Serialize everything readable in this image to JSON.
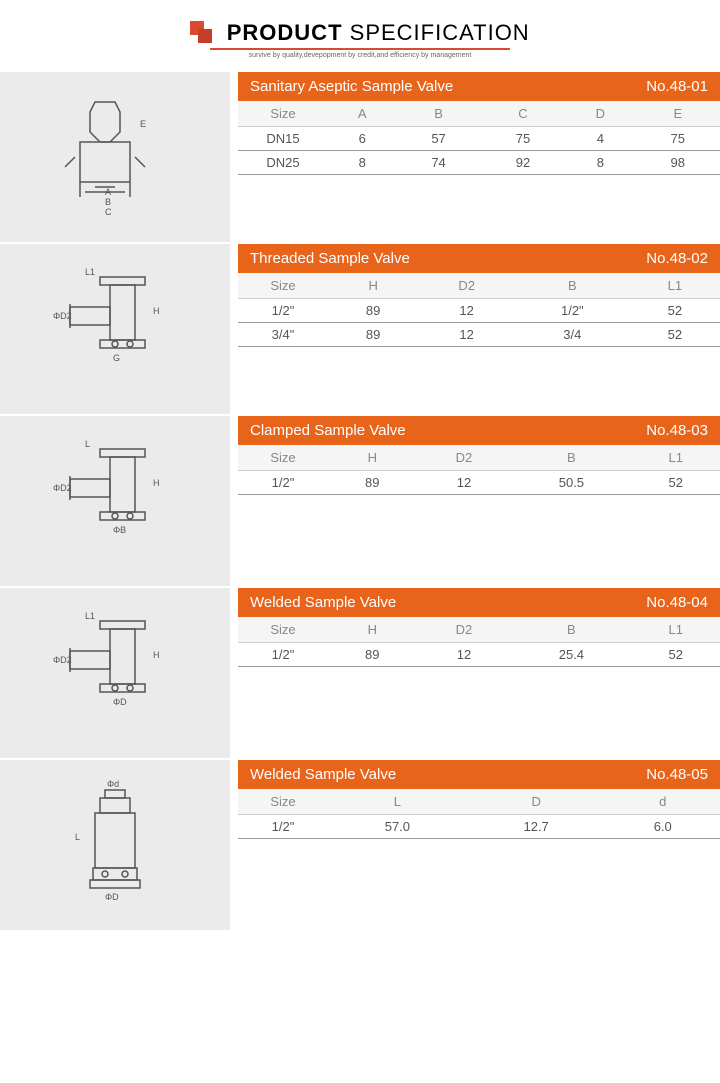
{
  "header": {
    "title_bold": "PRODUCT",
    "title_light": "SPECIFICATION",
    "subtitle": "survive by quality,devepopment by credit,and efficiency by management"
  },
  "sections": [
    {
      "title": "Sanitary Aseptic Sample Valve",
      "number": "No.48-01",
      "columns": [
        "Size",
        "A",
        "B",
        "C",
        "D",
        "E"
      ],
      "rows": [
        [
          "DN15",
          "6",
          "57",
          "75",
          "4",
          "75"
        ],
        [
          "DN25",
          "8",
          "74",
          "92",
          "8",
          "98"
        ]
      ],
      "diagram_labels": [
        "A",
        "B",
        "C",
        "E"
      ]
    },
    {
      "title": "Threaded Sample Valve",
      "number": "No.48-02",
      "columns": [
        "Size",
        "H",
        "D2",
        "B",
        "L1"
      ],
      "rows": [
        [
          "1/2\"",
          "89",
          "12",
          "1/2\"",
          "52"
        ],
        [
          "3/4\"",
          "89",
          "12",
          "3/4",
          "52"
        ]
      ],
      "diagram_labels": [
        "L1",
        "ΦD2",
        "H",
        "G"
      ]
    },
    {
      "title": "Clamped Sample Valve",
      "number": "No.48-03",
      "columns": [
        "Size",
        "H",
        "D2",
        "B",
        "L1"
      ],
      "rows": [
        [
          "1/2\"",
          "89",
          "12",
          "50.5",
          "52"
        ]
      ],
      "diagram_labels": [
        "L",
        "ΦD2",
        "H",
        "ΦB"
      ]
    },
    {
      "title": "Welded Sample Valve",
      "number": "No.48-04",
      "columns": [
        "Size",
        "H",
        "D2",
        "B",
        "L1"
      ],
      "rows": [
        [
          "1/2\"",
          "89",
          "12",
          "25.4",
          "52"
        ]
      ],
      "diagram_labels": [
        "L1",
        "ΦD2",
        "H",
        "ΦD"
      ]
    },
    {
      "title": "Welded Sample Valve",
      "number": "No.48-05",
      "columns": [
        "Size",
        "L",
        "D",
        "d"
      ],
      "rows": [
        [
          "1/2\"",
          "57.0",
          "12.7",
          "6.0"
        ]
      ],
      "diagram_labels": [
        "Φd",
        "L",
        "ΦD"
      ]
    }
  ],
  "colors": {
    "orange": "#e8641b",
    "gray_bg": "#ebebeb",
    "header_red": "#d94a2e"
  }
}
